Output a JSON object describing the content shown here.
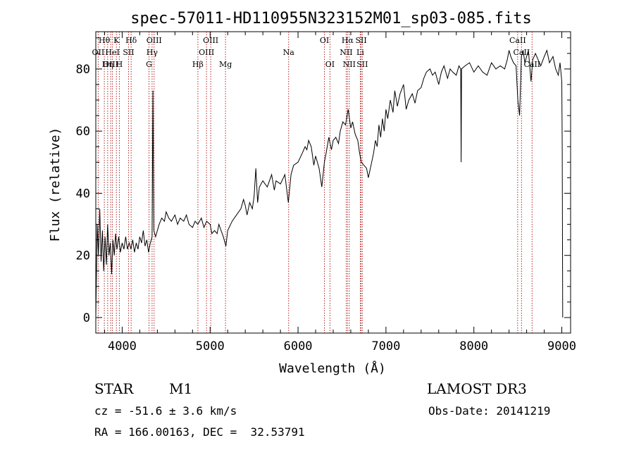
{
  "chart_data": {
    "type": "line",
    "title": "spec-57011-HD110955N323152M01_sp03-085.fits",
    "xlabel": "Wavelength (Å)",
    "ylabel": "Flux (relative)",
    "xlim": [
      3700,
      9100
    ],
    "ylim": [
      -5,
      92
    ],
    "xticks": [
      4000,
      5000,
      6000,
      7000,
      8000,
      9000
    ],
    "yticks": [
      0,
      20,
      40,
      60,
      80
    ],
    "series": [
      {
        "name": "flux",
        "points": [
          [
            3700,
            0
          ],
          [
            3715,
            30
          ],
          [
            3730,
            20
          ],
          [
            3745,
            35
          ],
          [
            3760,
            18
          ],
          [
            3775,
            28
          ],
          [
            3790,
            15
          ],
          [
            3805,
            26
          ],
          [
            3820,
            17
          ],
          [
            3835,
            30
          ],
          [
            3850,
            20
          ],
          [
            3865,
            24
          ],
          [
            3880,
            14
          ],
          [
            3895,
            25
          ],
          [
            3910,
            20
          ],
          [
            3925,
            27
          ],
          [
            3940,
            22
          ],
          [
            3960,
            26
          ],
          [
            3980,
            21
          ],
          [
            4000,
            24
          ],
          [
            4020,
            22
          ],
          [
            4040,
            26
          ],
          [
            4060,
            22
          ],
          [
            4080,
            24
          ],
          [
            4100,
            22
          ],
          [
            4120,
            25
          ],
          [
            4140,
            21
          ],
          [
            4160,
            24
          ],
          [
            4180,
            22
          ],
          [
            4200,
            26
          ],
          [
            4220,
            24
          ],
          [
            4240,
            28
          ],
          [
            4260,
            23
          ],
          [
            4280,
            25
          ],
          [
            4300,
            21
          ],
          [
            4320,
            24
          ],
          [
            4340,
            26
          ],
          [
            4350,
            73
          ],
          [
            4360,
            28
          ],
          [
            4380,
            26
          ],
          [
            4400,
            28
          ],
          [
            4420,
            30
          ],
          [
            4450,
            32
          ],
          [
            4480,
            31
          ],
          [
            4500,
            34
          ],
          [
            4530,
            32
          ],
          [
            4560,
            31
          ],
          [
            4600,
            33
          ],
          [
            4630,
            30
          ],
          [
            4660,
            32
          ],
          [
            4700,
            31
          ],
          [
            4730,
            33
          ],
          [
            4760,
            30
          ],
          [
            4800,
            29
          ],
          [
            4830,
            31
          ],
          [
            4860,
            30
          ],
          [
            4900,
            32
          ],
          [
            4930,
            29
          ],
          [
            4960,
            31
          ],
          [
            5000,
            30
          ],
          [
            5020,
            27
          ],
          [
            5050,
            28
          ],
          [
            5080,
            27
          ],
          [
            5100,
            30
          ],
          [
            5150,
            26
          ],
          [
            5180,
            23
          ],
          [
            5200,
            28
          ],
          [
            5250,
            31
          ],
          [
            5300,
            33
          ],
          [
            5350,
            35
          ],
          [
            5380,
            38
          ],
          [
            5400,
            36
          ],
          [
            5420,
            33
          ],
          [
            5450,
            37
          ],
          [
            5480,
            35
          ],
          [
            5500,
            39
          ],
          [
            5520,
            48
          ],
          [
            5540,
            37
          ],
          [
            5560,
            42
          ],
          [
            5600,
            44
          ],
          [
            5650,
            42
          ],
          [
            5700,
            46
          ],
          [
            5730,
            41
          ],
          [
            5750,
            44
          ],
          [
            5800,
            43
          ],
          [
            5850,
            46
          ],
          [
            5890,
            37
          ],
          [
            5920,
            46
          ],
          [
            5950,
            49
          ],
          [
            6000,
            50
          ],
          [
            6050,
            53
          ],
          [
            6080,
            55
          ],
          [
            6100,
            54
          ],
          [
            6120,
            57
          ],
          [
            6150,
            55
          ],
          [
            6180,
            49
          ],
          [
            6200,
            52
          ],
          [
            6240,
            48
          ],
          [
            6270,
            42
          ],
          [
            6300,
            50
          ],
          [
            6320,
            53
          ],
          [
            6350,
            58
          ],
          [
            6380,
            54
          ],
          [
            6400,
            57
          ],
          [
            6430,
            58
          ],
          [
            6460,
            56
          ],
          [
            6480,
            60
          ],
          [
            6510,
            63
          ],
          [
            6540,
            62
          ],
          [
            6570,
            67
          ],
          [
            6600,
            61
          ],
          [
            6620,
            63
          ],
          [
            6650,
            59
          ],
          [
            6680,
            57
          ],
          [
            6700,
            53
          ],
          [
            6720,
            50
          ],
          [
            6750,
            49
          ],
          [
            6780,
            48
          ],
          [
            6800,
            45
          ],
          [
            6830,
            49
          ],
          [
            6860,
            53
          ],
          [
            6880,
            57
          ],
          [
            6900,
            55
          ],
          [
            6920,
            62
          ],
          [
            6940,
            58
          ],
          [
            6960,
            64
          ],
          [
            6980,
            60
          ],
          [
            7000,
            67
          ],
          [
            7020,
            64
          ],
          [
            7050,
            70
          ],
          [
            7080,
            66
          ],
          [
            7100,
            73
          ],
          [
            7130,
            68
          ],
          [
            7160,
            72
          ],
          [
            7200,
            75
          ],
          [
            7230,
            67
          ],
          [
            7260,
            70
          ],
          [
            7300,
            72
          ],
          [
            7330,
            69
          ],
          [
            7360,
            73
          ],
          [
            7400,
            74
          ],
          [
            7430,
            77
          ],
          [
            7460,
            79
          ],
          [
            7500,
            80
          ],
          [
            7530,
            78
          ],
          [
            7560,
            79
          ],
          [
            7600,
            75
          ],
          [
            7630,
            79
          ],
          [
            7660,
            81
          ],
          [
            7700,
            77
          ],
          [
            7730,
            80
          ],
          [
            7760,
            79
          ],
          [
            7800,
            78
          ],
          [
            7830,
            81
          ],
          [
            7850,
            80
          ],
          [
            7855,
            50
          ],
          [
            7860,
            80
          ],
          [
            7900,
            81
          ],
          [
            7950,
            82
          ],
          [
            8000,
            79
          ],
          [
            8050,
            81
          ],
          [
            8100,
            79
          ],
          [
            8150,
            78
          ],
          [
            8200,
            82
          ],
          [
            8250,
            80
          ],
          [
            8300,
            81
          ],
          [
            8350,
            80
          ],
          [
            8380,
            83
          ],
          [
            8400,
            86
          ],
          [
            8420,
            84
          ],
          [
            8450,
            82
          ],
          [
            8480,
            81
          ],
          [
            8500,
            70
          ],
          [
            8520,
            65
          ],
          [
            8540,
            84
          ],
          [
            8560,
            86
          ],
          [
            8580,
            82
          ],
          [
            8600,
            84
          ],
          [
            8620,
            86
          ],
          [
            8650,
            76
          ],
          [
            8670,
            83
          ],
          [
            8700,
            85
          ],
          [
            8730,
            83
          ],
          [
            8760,
            81
          ],
          [
            8800,
            84
          ],
          [
            8830,
            86
          ],
          [
            8860,
            82
          ],
          [
            8900,
            84
          ],
          [
            8930,
            80
          ],
          [
            8960,
            78
          ],
          [
            8980,
            82
          ],
          [
            9000,
            76
          ],
          [
            9005,
            55
          ],
          [
            9010,
            0
          ]
        ]
      }
    ],
    "spectral_lines": [
      {
        "label": "Hθ",
        "wavelength": 3797,
        "row": 0
      },
      {
        "label": "K",
        "wavelength": 3934,
        "row": 0
      },
      {
        "label": "Hδ",
        "wavelength": 4102,
        "row": 0
      },
      {
        "label": "OIII",
        "wavelength": 4363,
        "row": 0
      },
      {
        "label": "OIII",
        "wavelength": 5007,
        "row": 0
      },
      {
        "label": "Na",
        "wavelength": 5893,
        "row": 1
      },
      {
        "label": "OI",
        "wavelength": 6300,
        "row": 0
      },
      {
        "label": "Hα",
        "wavelength": 6563,
        "row": 0
      },
      {
        "label": "SII",
        "wavelength": 6717,
        "row": 0
      },
      {
        "label": "CaII",
        "wavelength": 8498,
        "row": 0
      },
      {
        "label": "OII",
        "wavelength": 3727,
        "row": 1
      },
      {
        "label": "HeI",
        "wavelength": 3889,
        "row": 1
      },
      {
        "label": "SII",
        "wavelength": 4072,
        "row": 1
      },
      {
        "label": "Hγ",
        "wavelength": 4340,
        "row": 1
      },
      {
        "label": "OIII",
        "wavelength": 4959,
        "row": 1
      },
      {
        "label": "NII",
        "wavelength": 6548,
        "row": 1
      },
      {
        "label": "Li",
        "wavelength": 6708,
        "row": 1
      },
      {
        "label": "CaII",
        "wavelength": 8542,
        "row": 1
      },
      {
        "label": "OIII",
        "wavelength": 3869,
        "row": 2
      },
      {
        "label": "Hη",
        "wavelength": 3835,
        "row": 2
      },
      {
        "label": "H",
        "wavelength": 3968,
        "row": 2
      },
      {
        "label": "G",
        "wavelength": 4305,
        "row": 2
      },
      {
        "label": "Hβ",
        "wavelength": 4861,
        "row": 2
      },
      {
        "label": "Mg",
        "wavelength": 5175,
        "row": 2
      },
      {
        "label": "OI",
        "wavelength": 6363,
        "row": 2
      },
      {
        "label": "NII",
        "wavelength": 6583,
        "row": 2
      },
      {
        "label": "SII",
        "wavelength": 6731,
        "row": 2
      },
      {
        "label": "CaII",
        "wavelength": 8662,
        "row": 2
      }
    ],
    "grid": false,
    "colors": {
      "line": "#000000",
      "markers": "#b22222"
    }
  },
  "info": {
    "object_class": "STAR",
    "subclass": "M1",
    "survey": "LAMOST DR3",
    "cz": "cz = -51.6 ± 3.6 km/s",
    "obs_date": "Obs-Date: 20141219",
    "coords": "RA = 166.00163, DEC =  32.53791"
  }
}
